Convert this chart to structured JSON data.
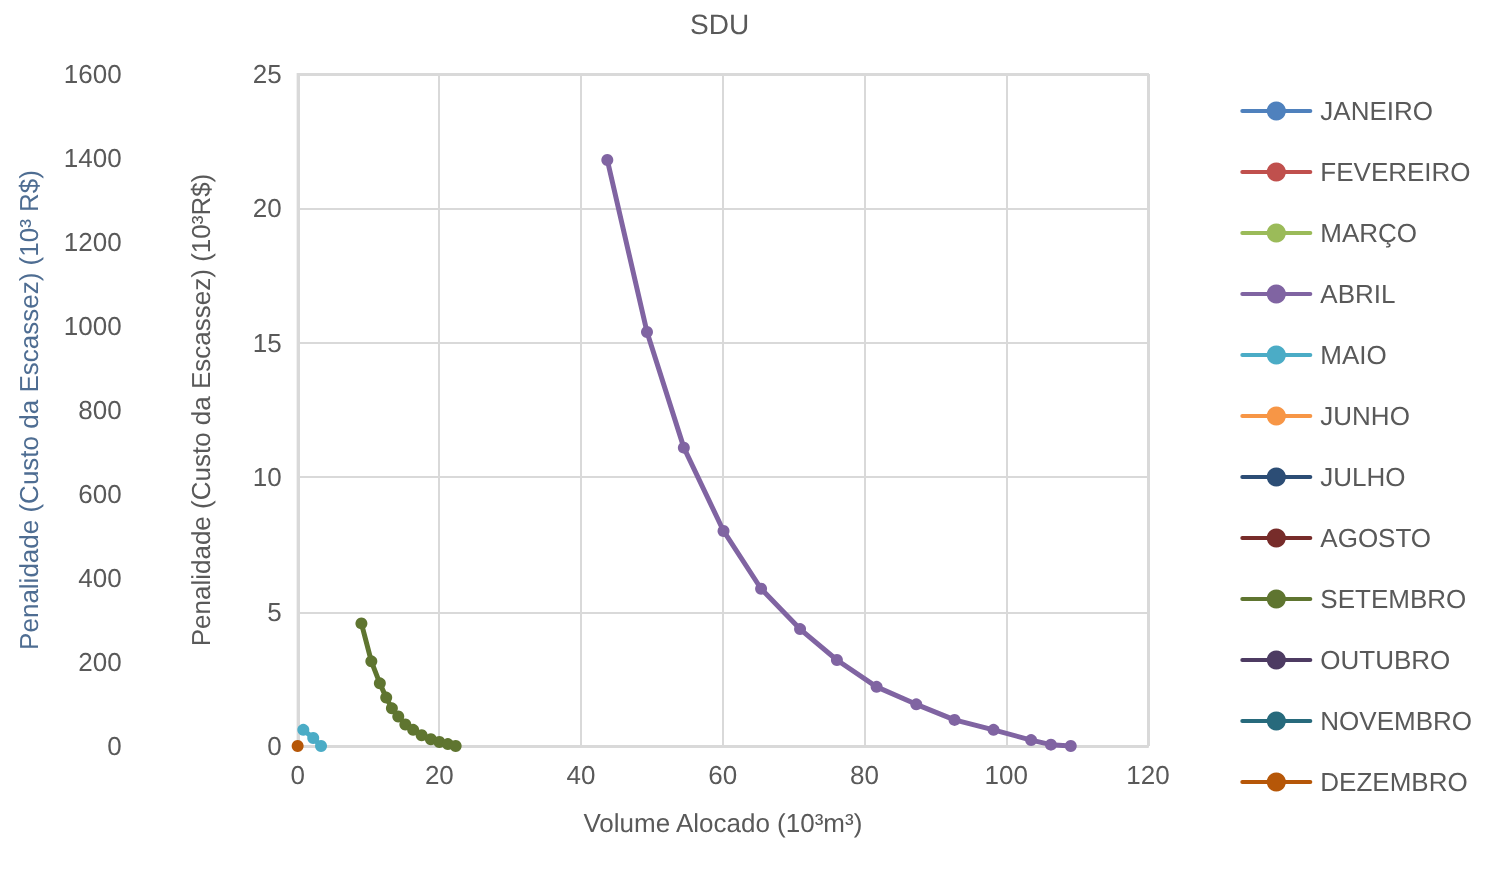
{
  "chart_data": {
    "type": "line",
    "title": "SDU",
    "xlabel": "Volume Alocado (10³m³)",
    "ylabel": "Penalidade (Custo da Escassez) (10³R$)",
    "y2label": "Penalidade (Custo da Escassez) (10³ R$)",
    "xlim": [
      0,
      120
    ],
    "xticks": [
      0,
      20,
      40,
      60,
      80,
      100,
      120
    ],
    "ylim": [
      0,
      25
    ],
    "yticks": [
      0,
      5,
      10,
      15,
      20,
      25
    ],
    "y2lim": [
      0,
      1600
    ],
    "y2ticks": [
      0,
      200,
      400,
      600,
      800,
      1000,
      1200,
      1400,
      1600
    ],
    "grid": true,
    "legend": "right",
    "marker": "circle",
    "line_style": "solid",
    "series": [
      {
        "name": "JANEIRO",
        "color": "#4f81bd"
      },
      {
        "name": "FEVEREIRO",
        "color": "#c0504d"
      },
      {
        "name": "MARÇO",
        "color": "#9bbb59"
      },
      {
        "name": "ABRIL",
        "color": "#8064a2",
        "x": [
          43.7,
          49.3,
          54.5,
          60.1,
          65.4,
          70.9,
          76.1,
          81.7,
          87.3,
          92.7,
          98.2,
          103.5,
          106.3,
          109.1
        ],
        "values": [
          21.8,
          15.4,
          11.1,
          8.0,
          5.85,
          4.35,
          3.2,
          2.2,
          1.55,
          0.97,
          0.6,
          0.22,
          0.05,
          0
        ]
      },
      {
        "name": "MAIO",
        "color": "#4bacc6",
        "x": [
          0.8,
          2.2,
          3.3
        ],
        "values": [
          0.6,
          0.3,
          0
        ]
      },
      {
        "name": "JUNHO",
        "color": "#f79646"
      },
      {
        "name": "JULHO",
        "color": "#2c4d75"
      },
      {
        "name": "AGOSTO",
        "color": "#772c2a"
      },
      {
        "name": "SETEMBRO",
        "color": "#5f7530",
        "x": [
          9.0,
          10.4,
          11.6,
          12.5,
          13.3,
          14.2,
          15.2,
          16.3,
          17.5,
          18.8,
          20.0,
          21.2,
          22.3
        ],
        "values": [
          4.56,
          3.15,
          2.33,
          1.8,
          1.4,
          1.1,
          0.8,
          0.6,
          0.4,
          0.25,
          0.15,
          0.07,
          0
        ]
      },
      {
        "name": "OUTUBRO",
        "color": "#4d3b62"
      },
      {
        "name": "NOVEMBRO",
        "color": "#276a7c"
      },
      {
        "name": "DEZEMBRO",
        "color": "#b65708",
        "x": [
          0
        ],
        "values": [
          0
        ]
      }
    ]
  }
}
